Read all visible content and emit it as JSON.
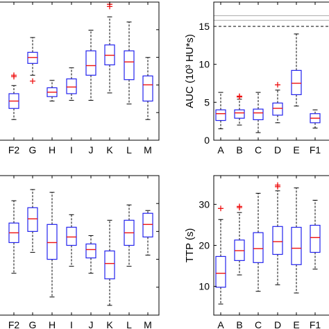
{
  "chart_data": [
    {
      "id": "top-left",
      "type": "box",
      "title": "",
      "xlabel": "",
      "ylabel": "",
      "categories": [
        "F2",
        "G",
        "H",
        "I",
        "J",
        "K",
        "L",
        "M"
      ],
      "ylim": [
        -0.5,
        18.2
      ],
      "yticks": [],
      "boxes": [
        {
          "cat": "F2",
          "wlo": 2.3,
          "q1": 3.8,
          "med": 4.8,
          "q3": 5.8,
          "whi": 6.9,
          "out": [
            8.1,
            8.3
          ]
        },
        {
          "cat": "G",
          "wlo": 8.3,
          "q1": 9.9,
          "med": 10.7,
          "q3": 11.4,
          "whi": 13.4,
          "out": [
            7.5
          ]
        },
        {
          "cat": "H",
          "wlo": 4.8,
          "q1": 5.4,
          "med": 6.0,
          "q3": 6.6,
          "whi": 7.6,
          "out": []
        },
        {
          "cat": "I",
          "wlo": 4.9,
          "q1": 5.8,
          "med": 6.7,
          "q3": 7.8,
          "whi": 9.3,
          "out": []
        },
        {
          "cat": "J",
          "wlo": 4.9,
          "q1": 8.3,
          "med": 9.6,
          "q3": 11.6,
          "whi": 14.4,
          "out": []
        },
        {
          "cat": "K",
          "wlo": 5.9,
          "q1": 9.7,
          "med": 11.0,
          "q3": 12.4,
          "whi": 16.2,
          "out": [
            17.9,
            17.6
          ]
        },
        {
          "cat": "L",
          "wlo": 4.4,
          "q1": 7.7,
          "med": 10.1,
          "q3": 11.6,
          "whi": 15.5,
          "out": []
        },
        {
          "cat": "M",
          "wlo": 2.3,
          "q1": 4.8,
          "med": 7.0,
          "q3": 8.2,
          "whi": 10.7,
          "out": []
        }
      ]
    },
    {
      "id": "top-right",
      "type": "box",
      "title": "",
      "xlabel": "",
      "ylabel": "AUC (10³ HU*s)",
      "categories": [
        "A",
        "B",
        "C",
        "D",
        "E",
        "F1"
      ],
      "ylim": [
        0,
        18.2
      ],
      "yticks": [
        0,
        5,
        10,
        15
      ],
      "reference_lines": [
        {
          "y": 15,
          "style": "dashed",
          "color": "#000000"
        },
        {
          "y": 15.8,
          "style": "solid",
          "color": "#aaaaaa"
        },
        {
          "y": 16.4,
          "style": "solid",
          "color": "#aaaaaa"
        }
      ],
      "boxes": [
        {
          "cat": "A",
          "wlo": 1.5,
          "q1": 2.6,
          "med": 3.5,
          "q3": 4.0,
          "whi": 6.3,
          "out": []
        },
        {
          "cat": "B",
          "wlo": 2.0,
          "q1": 2.9,
          "med": 3.6,
          "q3": 4.0,
          "whi": 5.4,
          "out": [
            5.7,
            5.8
          ]
        },
        {
          "cat": "C",
          "wlo": 1.0,
          "q1": 2.7,
          "med": 3.6,
          "q3": 4.1,
          "whi": 6.3,
          "out": []
        },
        {
          "cat": "D",
          "wlo": 2.3,
          "q1": 3.3,
          "med": 4.2,
          "q3": 4.9,
          "whi": 6.6,
          "out": [
            7.3
          ]
        },
        {
          "cat": "E",
          "wlo": 4.5,
          "q1": 6.0,
          "med": 7.5,
          "q3": 9.2,
          "whi": 14.0,
          "out": []
        },
        {
          "cat": "F1",
          "wlo": 1.6,
          "q1": 2.3,
          "med": 2.9,
          "q3": 3.5,
          "whi": 4.0,
          "out": []
        }
      ]
    },
    {
      "id": "bottom-left",
      "type": "box",
      "title": "",
      "xlabel": "",
      "ylabel": "",
      "categories": [
        "F2",
        "G",
        "H",
        "I",
        "J",
        "K",
        "L",
        "M"
      ],
      "ylim": [
        0,
        10
      ],
      "yticks": [],
      "boxes": [
        {
          "cat": "F2",
          "wlo": 3.0,
          "q1": 5.2,
          "med": 5.9,
          "q3": 6.6,
          "whi": 8.2,
          "out": []
        },
        {
          "cat": "G",
          "wlo": 4.5,
          "q1": 6.0,
          "med": 6.9,
          "q3": 7.7,
          "whi": 9.0,
          "out": []
        },
        {
          "cat": "H",
          "wlo": 1.3,
          "q1": 4.0,
          "med": 5.2,
          "q3": 6.5,
          "whi": 8.8,
          "out": []
        },
        {
          "cat": "I",
          "wlo": 3.5,
          "q1": 5.0,
          "med": 5.6,
          "q3": 6.3,
          "whi": 7.2,
          "out": []
        },
        {
          "cat": "J",
          "wlo": 3.0,
          "q1": 4.1,
          "med": 4.7,
          "q3": 5.1,
          "whi": 5.7,
          "out": []
        },
        {
          "cat": "K",
          "wlo": 0.7,
          "q1": 2.6,
          "med": 3.7,
          "q3": 4.6,
          "whi": 6.8,
          "out": []
        },
        {
          "cat": "L",
          "wlo": 3.5,
          "q1": 5.0,
          "med": 5.9,
          "q3": 6.8,
          "whi": 7.9,
          "out": []
        },
        {
          "cat": "M",
          "wlo": 4.3,
          "q1": 5.6,
          "med": 6.5,
          "q3": 7.3,
          "whi": 7.5,
          "out": []
        }
      ]
    },
    {
      "id": "bottom-right",
      "type": "box",
      "title": "",
      "xlabel": "",
      "ylabel": "TTP (s)",
      "categories": [
        "A",
        "B",
        "C",
        "D",
        "E",
        "F1"
      ],
      "ylim": [
        3,
        37
      ],
      "yticks": [
        10,
        20,
        30
      ],
      "boxes": [
        {
          "cat": "A",
          "wlo": 5.7,
          "q1": 9.8,
          "med": 13.2,
          "q3": 17.3,
          "whi": 26.3,
          "out": [
            29.0
          ]
        },
        {
          "cat": "B",
          "wlo": 12.8,
          "q1": 16.3,
          "med": 18.7,
          "q3": 21.3,
          "whi": 28.0,
          "out": [
            29.2,
            29.5
          ]
        },
        {
          "cat": "C",
          "wlo": 8.8,
          "q1": 15.8,
          "med": 19.2,
          "q3": 23.1,
          "whi": 32.7,
          "out": []
        },
        {
          "cat": "D",
          "wlo": 10.4,
          "q1": 17.8,
          "med": 20.9,
          "q3": 24.6,
          "whi": 33.3,
          "out": [
            34.3,
            34.7
          ]
        },
        {
          "cat": "E",
          "wlo": 8.4,
          "q1": 15.3,
          "med": 19.3,
          "q3": 24.4,
          "whi": 34.0,
          "out": []
        },
        {
          "cat": "F1",
          "wlo": 14.2,
          "q1": 18.3,
          "med": 21.9,
          "q3": 24.9,
          "whi": 31.0,
          "out": []
        }
      ]
    }
  ]
}
